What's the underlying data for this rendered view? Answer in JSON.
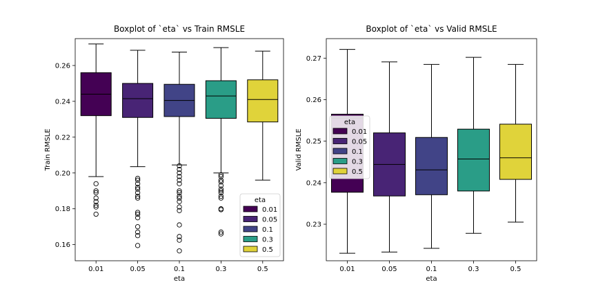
{
  "chart_data": [
    {
      "type": "boxplot",
      "title": "Boxplot of `eta` vs Train RMSLE",
      "xlabel": "eta",
      "ylabel": "Train RMSLE",
      "ylim": [
        0.151,
        0.275
      ],
      "yticks": [
        "0.16",
        "0.18",
        "0.20",
        "0.22",
        "0.24",
        "0.26"
      ],
      "categories": [
        "0.01",
        "0.05",
        "0.1",
        "0.3",
        "0.5"
      ],
      "legend": {
        "title": "eta",
        "placement": "lower-right"
      },
      "boxes": [
        {
          "category": "0.01",
          "whislo": 0.198,
          "q1": 0.232,
          "med": 0.244,
          "q3": 0.256,
          "whishi": 0.272,
          "fliers": [
            0.194,
            0.19,
            0.189,
            0.186,
            0.184,
            0.182,
            0.181,
            0.177
          ]
        },
        {
          "category": "0.05",
          "whislo": 0.2035,
          "q1": 0.231,
          "med": 0.2415,
          "q3": 0.25,
          "whishi": 0.2685,
          "fliers": [
            0.197,
            0.196,
            0.194,
            0.192,
            0.191,
            0.189,
            0.187,
            0.186,
            0.178,
            0.177,
            0.175,
            0.17,
            0.167,
            0.165,
            0.1595
          ]
        },
        {
          "category": "0.1",
          "whislo": 0.2045,
          "q1": 0.2315,
          "med": 0.2405,
          "q3": 0.2495,
          "whishi": 0.2675,
          "fliers": [
            0.204,
            0.202,
            0.2,
            0.198,
            0.196,
            0.194,
            0.19,
            0.189,
            0.187,
            0.186,
            0.184,
            0.181,
            0.179,
            0.171,
            0.1645,
            0.1625,
            0.1565
          ]
        },
        {
          "category": "0.3",
          "whislo": 0.2,
          "q1": 0.2305,
          "med": 0.243,
          "q3": 0.2515,
          "whishi": 0.27,
          "fliers": [
            0.199,
            0.198,
            0.196,
            0.195,
            0.193,
            0.191,
            0.19,
            0.189,
            0.187,
            0.186,
            0.18,
            0.1795,
            0.167,
            0.166
          ]
        },
        {
          "category": "0.5",
          "whislo": 0.196,
          "q1": 0.2285,
          "med": 0.241,
          "q3": 0.252,
          "whishi": 0.268,
          "fliers": []
        }
      ]
    },
    {
      "type": "boxplot",
      "title": "Boxplot of `eta` vs Valid RMSLE",
      "xlabel": "eta",
      "ylabel": "Valid RMSLE",
      "ylim": [
        0.2212,
        0.2747
      ],
      "yticks": [
        "0.23",
        "0.24",
        "0.25",
        "0.26",
        "0.27"
      ],
      "categories": [
        "0.01",
        "0.05",
        "0.1",
        "0.3",
        "0.5"
      ],
      "legend": {
        "title": "eta",
        "placement": "upper-left"
      },
      "boxes": [
        {
          "category": "0.01",
          "whislo": 0.223,
          "q1": 0.2377,
          "med": 0.2555,
          "q3": 0.2565,
          "whishi": 0.2721,
          "fliers": []
        },
        {
          "category": "0.05",
          "whislo": 0.2233,
          "q1": 0.2368,
          "med": 0.2444,
          "q3": 0.252,
          "whishi": 0.2691,
          "fliers": []
        },
        {
          "category": "0.1",
          "whislo": 0.2242,
          "q1": 0.2371,
          "med": 0.2431,
          "q3": 0.2509,
          "whishi": 0.2685,
          "fliers": []
        },
        {
          "category": "0.3",
          "whislo": 0.2278,
          "q1": 0.238,
          "med": 0.2457,
          "q3": 0.2529,
          "whishi": 0.2702,
          "fliers": []
        },
        {
          "category": "0.5",
          "whislo": 0.2305,
          "q1": 0.2408,
          "med": 0.246,
          "q3": 0.2541,
          "whishi": 0.2685,
          "fliers": []
        }
      ]
    }
  ],
  "colors": {
    "0.01": "#440154",
    "0.05": "#482475",
    "0.1": "#414487",
    "0.3": "#2a9d87",
    "0.5": "#e0d33a"
  }
}
